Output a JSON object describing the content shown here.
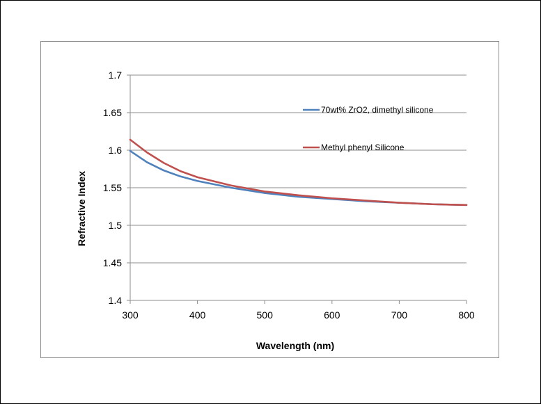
{
  "chart_data": {
    "type": "line",
    "title": "",
    "xlabel": "Wavelength (nm)",
    "ylabel": "Refractive Index",
    "xlim": [
      300,
      800
    ],
    "ylim": [
      1.4,
      1.7
    ],
    "xticks": [
      "300",
      "400",
      "500",
      "600",
      "700",
      "800"
    ],
    "yticks": [
      "1.4",
      "1.45",
      "1.5",
      "1.55",
      "1.6",
      "1.65",
      "1.7"
    ],
    "grid": "horizontal",
    "legend_position": "right-inside",
    "x": [
      300,
      325,
      350,
      375,
      400,
      450,
      500,
      550,
      600,
      650,
      700,
      750,
      800
    ],
    "series": [
      {
        "name": "70wt% ZrO2, dimethyl silicone",
        "color": "#4f81bd",
        "values": [
          1.599,
          1.584,
          1.573,
          1.565,
          1.559,
          1.55,
          1.543,
          1.538,
          1.535,
          1.532,
          1.53,
          1.528,
          1.527
        ]
      },
      {
        "name": "Methyl phenyl Silicone",
        "color": "#c0504d",
        "values": [
          1.614,
          1.597,
          1.583,
          1.572,
          1.564,
          1.553,
          1.545,
          1.54,
          1.536,
          1.533,
          1.53,
          1.528,
          1.527
        ]
      }
    ]
  }
}
